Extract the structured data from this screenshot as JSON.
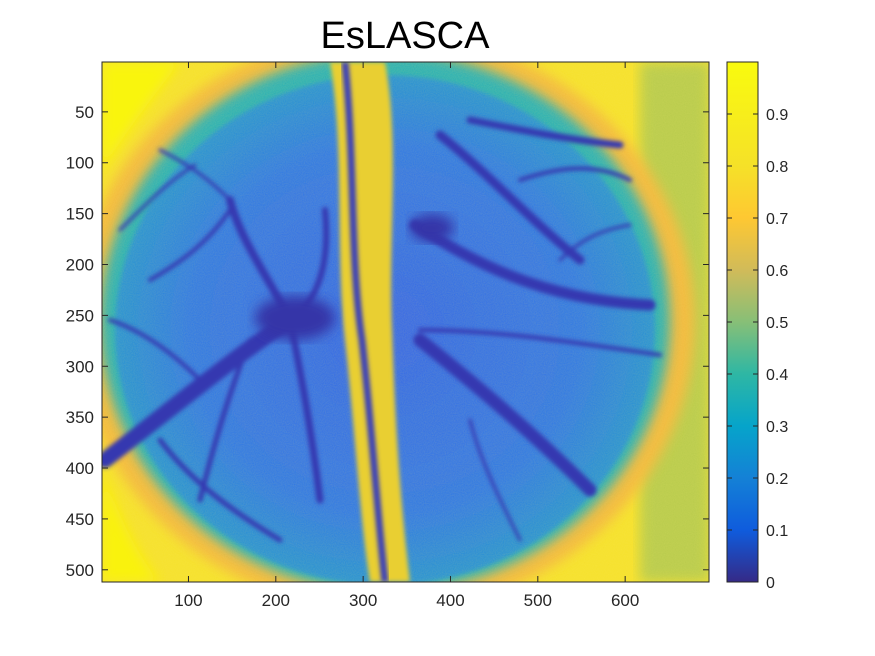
{
  "chart_data": {
    "type": "heatmap",
    "title": "EsLASCA",
    "xlabel": "",
    "ylabel": "",
    "colormap": "parula",
    "xlim": [
      1,
      696
    ],
    "ylim": [
      1,
      512
    ],
    "y_reversed": true,
    "x_ticks": [
      100,
      200,
      300,
      400,
      500,
      600
    ],
    "y_ticks": [
      50,
      100,
      150,
      200,
      250,
      300,
      350,
      400,
      450,
      500
    ],
    "colorbar": {
      "location": "right",
      "clim": [
        0,
        1
      ],
      "ticks": [
        0,
        0.1,
        0.2,
        0.3,
        0.4,
        0.5,
        0.6,
        0.7,
        0.8,
        0.9
      ]
    },
    "image_description_values": {
      "background_edges": 0.95,
      "tissue_region": 0.35,
      "vessels": 0.08,
      "central_sinus_band": 0.85
    }
  }
}
